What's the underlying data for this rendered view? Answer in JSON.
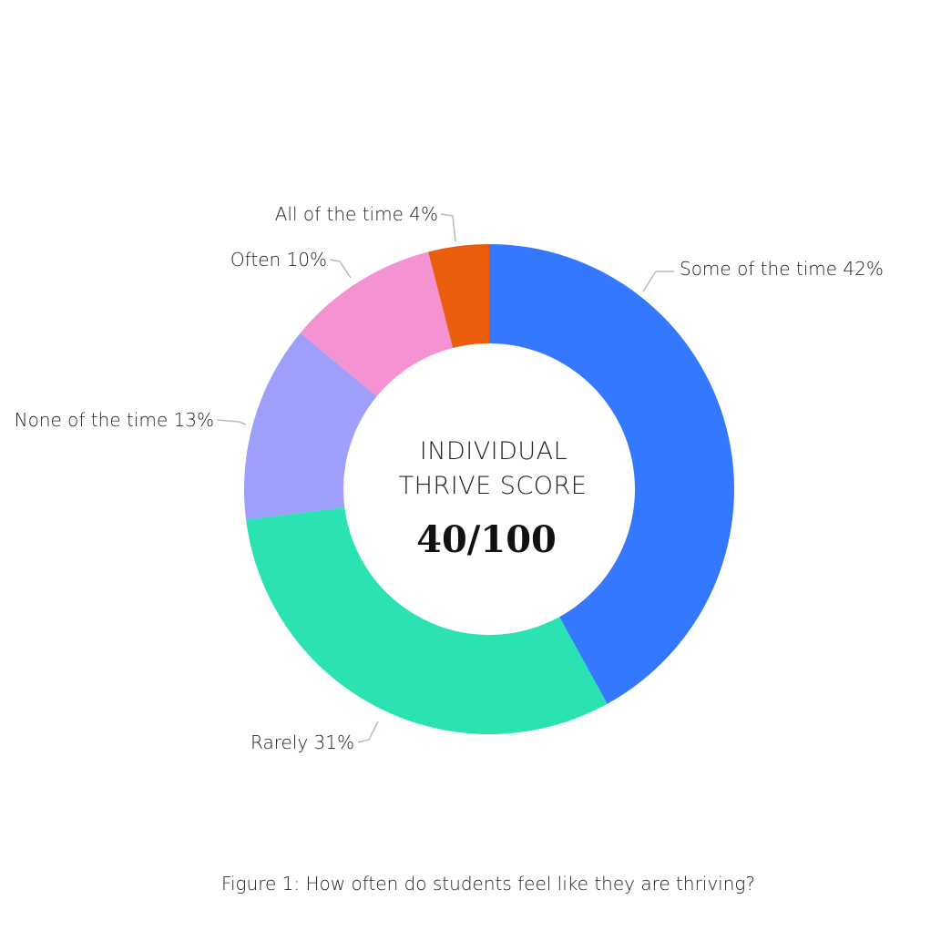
{
  "chart_data": {
    "type": "pie",
    "variant": "donut",
    "start": "12 o'clock, clockwise",
    "slices": [
      {
        "label": "Some of the time",
        "value": 42,
        "display": "Some of the time 42%",
        "color": "#3378FF"
      },
      {
        "label": "Rarely",
        "value": 31,
        "display": "Rarely 31%",
        "color": "#2BE2B2"
      },
      {
        "label": "None of the time",
        "value": 13,
        "display": "None of the time 13%",
        "color": "#9E9FFA"
      },
      {
        "label": "Often",
        "value": 10,
        "display": "Often 10%",
        "color": "#F492D2"
      },
      {
        "label": "All of the time",
        "value": 4,
        "display": "All of the time 4%",
        "color": "#E95D0D"
      }
    ],
    "center": {
      "line1": "INDIVIDUAL",
      "line2": "THRIVE SCORE",
      "score": "40/100"
    },
    "caption": "Figure 1: How often do students feel like they are thriving?",
    "leader_color": "#BBBBBB"
  }
}
